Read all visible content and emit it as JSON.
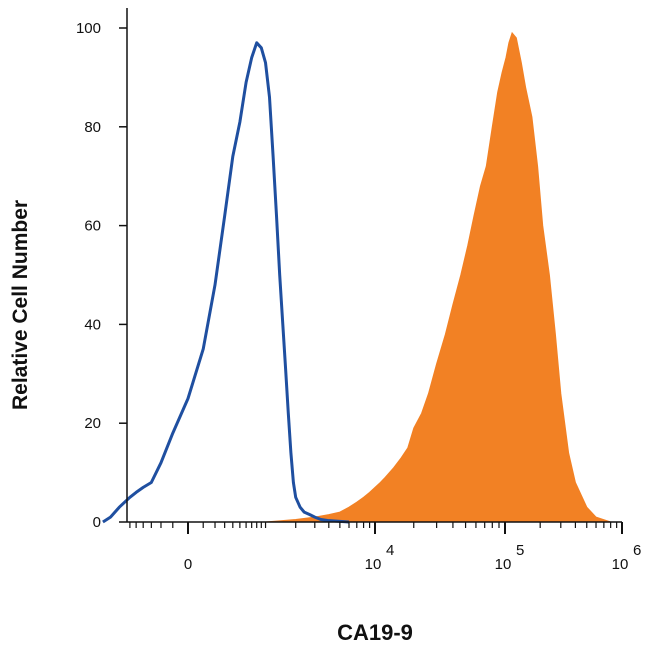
{
  "chart_data": {
    "type": "area",
    "xlabel": "CA19-9",
    "ylabel": "Relative Cell Number",
    "x_scale": "biexponential",
    "ylim": [
      0,
      100
    ],
    "grid": false,
    "legend": "none",
    "y_ticks": [
      {
        "value": 0,
        "label": "0"
      },
      {
        "value": 20,
        "label": "20"
      },
      {
        "value": 40,
        "label": "40"
      },
      {
        "value": 60,
        "label": "60"
      },
      {
        "value": 80,
        "label": "80"
      },
      {
        "value": 100,
        "label": "100"
      }
    ],
    "x_ticks": [
      {
        "base": "0",
        "exp": ""
      },
      {
        "base": "10",
        "exp": "4"
      },
      {
        "base": "10",
        "exp": "5"
      },
      {
        "base": "10",
        "exp": "6"
      }
    ],
    "series": [
      {
        "style": "outline",
        "color": "#1f4fa0",
        "x": [
          -1200,
          -1000,
          -800,
          -600,
          -500,
          -400,
          -300,
          -200,
          -100,
          0,
          100,
          200,
          300,
          400,
          500,
          600,
          700,
          800,
          900,
          1000,
          1100,
          1200,
          1300,
          1400,
          1500,
          1600,
          1700,
          1800,
          1900,
          2000,
          2200,
          2400,
          2700,
          3000,
          3400,
          3900,
          4500,
          5200,
          6000
        ],
        "values": [
          0,
          1,
          3,
          5,
          6,
          7,
          8,
          12,
          18,
          25,
          35,
          48,
          62,
          74,
          81,
          89,
          94,
          97,
          96,
          93,
          86,
          74,
          62,
          50,
          40,
          31,
          22,
          14,
          8,
          5,
          3,
          2,
          1.5,
          1,
          0.5,
          0.3,
          0.2,
          0.1,
          0
        ]
      },
      {
        "style": "filled",
        "color": "#f28124",
        "x": [
          1000,
          2000,
          3000,
          4000,
          5000,
          6000,
          7000,
          8000,
          9000,
          10000,
          11000,
          12000,
          14000,
          16000,
          18000,
          20000,
          23000,
          26000,
          30000,
          35000,
          40000,
          46000,
          52000,
          58000,
          65000,
          72000,
          80000,
          88000,
          95000,
          102000,
          108000,
          115000,
          125000,
          138000,
          150000,
          170000,
          190000,
          210000,
          240000,
          270000,
          300000,
          350000,
          400000,
          500000,
          600000,
          800000
        ],
        "values": [
          0,
          0.5,
          1,
          1.5,
          2,
          3,
          4,
          5,
          6,
          7,
          8,
          9,
          11,
          13,
          15,
          19,
          22,
          26,
          32,
          38,
          44,
          50,
          56,
          62,
          68,
          72,
          80,
          87,
          91,
          94,
          97,
          99,
          98,
          93,
          88,
          82,
          72,
          60,
          50,
          38,
          26,
          14,
          8,
          3,
          1,
          0
        ]
      }
    ]
  }
}
